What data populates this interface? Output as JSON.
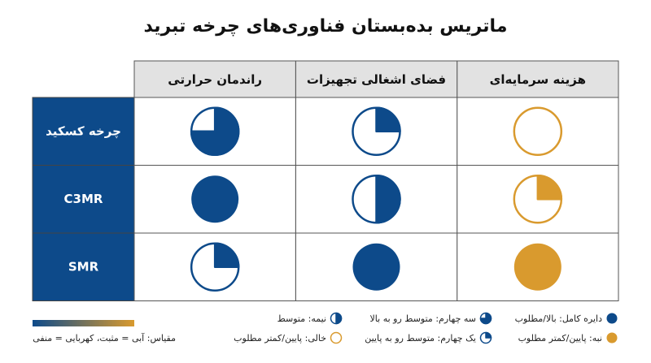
{
  "title": "ماتریس بده‌بستان فناوری‌های چرخه تبرید",
  "columns": [
    "هزینه سرمایه‌ای",
    "فضای اشغالی تجهیزات",
    "راندمان حرارتی"
  ],
  "rows": [
    {
      "label": "چرخه کسکید",
      "cells": [
        {
          "fill": 0,
          "color": "#d99a2e"
        },
        {
          "fill": 0.25,
          "color": "#0d4a8a"
        },
        {
          "fill": 0.75,
          "color": "#0d4a8a"
        }
      ]
    },
    {
      "label": "C3MR",
      "cells": [
        {
          "fill": 0.25,
          "color": "#d99a2e"
        },
        {
          "fill": 0.5,
          "color": "#0d4a8a"
        },
        {
          "fill": 1,
          "color": "#0d4a8a"
        }
      ]
    },
    {
      "label": "SMR",
      "cells": [
        {
          "fill": 1,
          "color": "#d99a2e"
        },
        {
          "fill": 1,
          "color": "#0d4a8a"
        },
        {
          "fill": 0.25,
          "color": "#0d4a8a"
        }
      ]
    }
  ],
  "legend": {
    "items": [
      {
        "label": "دایره کامل: بالا/مطلوب",
        "fill": 1,
        "color": "#0d4a8a"
      },
      {
        "label": "نبه: پایین/کمتر مطلوب",
        "fill": 1,
        "color": "#d99a2e"
      },
      {
        "label": "سه چهارم: متوسط رو به بالا",
        "fill": 0.75,
        "color": "#0d4a8a"
      },
      {
        "label": "یک چهارم: متوسط رو به پایین",
        "fill": 0.25,
        "color": "#0d4a8a"
      },
      {
        "label": "نیمه: متوسط",
        "fill": 0.5,
        "color": "#0d4a8a"
      },
      {
        "label": "خالی: پایین/کمتر مطلوب",
        "fill": 0,
        "color": "#d99a2e"
      }
    ],
    "scale": {
      "label": "مقیاس: آبی = مثبت، کهربایی = منفی",
      "colors": [
        "#0d4a8a",
        "#d99a2e"
      ]
    }
  }
}
